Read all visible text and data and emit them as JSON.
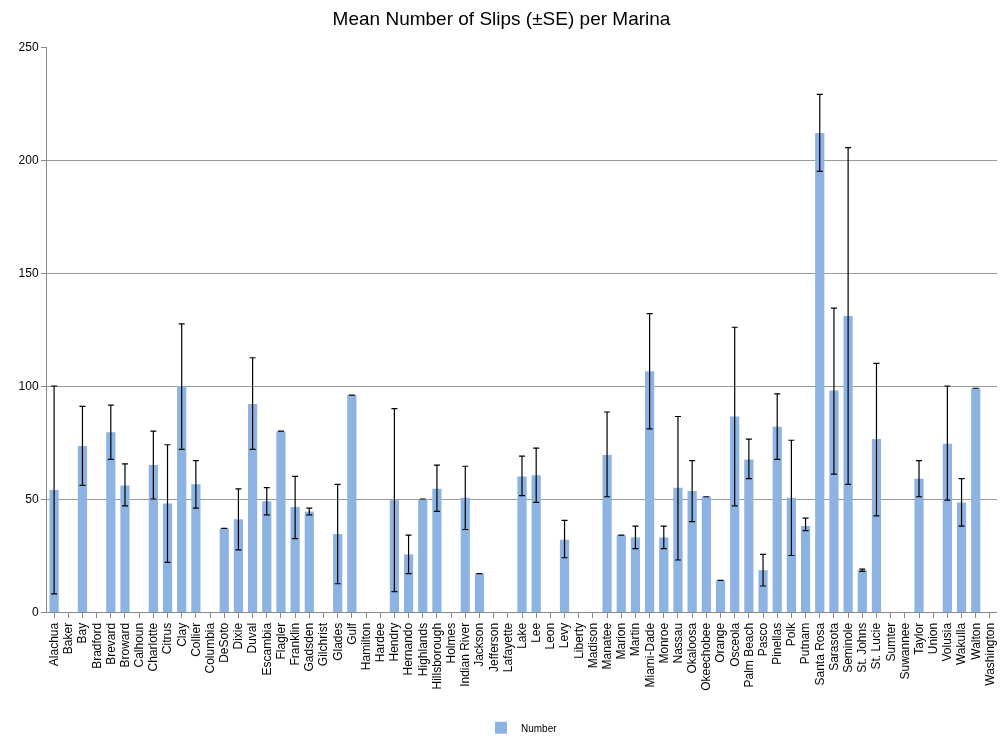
{
  "chart_data": {
    "type": "bar",
    "title": "Mean Number of Slips (±SE) per Marina",
    "categories": [
      "Alachua",
      "Baker",
      "Bay",
      "Bradford",
      "Brevard",
      "Broward",
      "Calhoun",
      "Charlotte",
      "Citrus",
      "Clay",
      "Collier",
      "Columbia",
      "DeSoto",
      "Dixie",
      "Duval",
      "Escambia",
      "Flagler",
      "Franklin",
      "Gadsden",
      "Gilchrist",
      "Glades",
      "Gulf",
      "Hamilton",
      "Hardee",
      "Hendry",
      "Hernando",
      "Highlands",
      "Hillsborough",
      "Holmes",
      "Indian River",
      "Jackson",
      "Jefferson",
      "Lafayette",
      "Lake",
      "Lee",
      "Leon",
      "Levy",
      "Liberty",
      "Madison",
      "Manatee",
      "Marion",
      "Martin",
      "Miami-Dade",
      "Monroe",
      "Nassau",
      "Okaloosa",
      "Okeechobee",
      "Orange",
      "Osceola",
      "Palm Beach",
      "Pasco",
      "Pinellas",
      "Polk",
      "Putnam",
      "Santa Rosa",
      "Sarasota",
      "Seminole",
      "St. Johns",
      "St. Lucie",
      "Sumter",
      "Suwannee",
      "Taylor",
      "Union",
      "Volusia",
      "Wakulla",
      "Walton",
      "Washington"
    ],
    "series": [
      {
        "name": "Number",
        "color": "#8db3e2",
        "values": [
          54,
          null,
          73.5,
          null,
          79.5,
          56,
          null,
          65,
          48,
          100,
          56.5,
          null,
          37,
          41,
          92,
          49,
          80,
          46.5,
          44.5,
          null,
          34.5,
          96,
          null,
          null,
          49.5,
          25.5,
          50,
          54.5,
          null,
          50.5,
          17,
          null,
          null,
          60,
          60.5,
          null,
          32,
          null,
          null,
          69.5,
          34,
          33,
          106.5,
          33,
          55,
          53.5,
          51,
          14,
          86.5,
          67.5,
          18.5,
          82,
          50.5,
          38,
          212,
          98,
          131,
          18.5,
          76.5,
          null,
          null,
          59,
          null,
          74.5,
          48.5,
          99,
          null
        ],
        "errors": [
          [
            8,
            100
          ],
          null,
          [
            56,
            91
          ],
          null,
          [
            67.5,
            91.5
          ],
          [
            47,
            65.5
          ],
          null,
          [
            50,
            80
          ],
          [
            22,
            74
          ],
          [
            72,
            127.5
          ],
          [
            46,
            67
          ],
          null,
          null,
          [
            27.5,
            54.5
          ],
          [
            72,
            112.5
          ],
          [
            43,
            55
          ],
          null,
          [
            32.5,
            60
          ],
          [
            43,
            46
          ],
          null,
          [
            12.5,
            56.5
          ],
          null,
          null,
          null,
          [
            9,
            90
          ],
          [
            17,
            34
          ],
          null,
          [
            44.5,
            65
          ],
          null,
          [
            36.5,
            64.5
          ],
          null,
          null,
          null,
          [
            51.5,
            69
          ],
          [
            48.5,
            72.5
          ],
          null,
          [
            24,
            40.5
          ],
          null,
          null,
          [
            51,
            88.5
          ],
          null,
          [
            28,
            38
          ],
          [
            81,
            132
          ],
          [
            28,
            38
          ],
          [
            23,
            86.5
          ],
          [
            40,
            67
          ],
          null,
          null,
          [
            47,
            126
          ],
          [
            59,
            76.5
          ],
          [
            11.5,
            25.5
          ],
          [
            67.5,
            96.5
          ],
          [
            25,
            76
          ],
          [
            36,
            41.5
          ],
          [
            195,
            229
          ],
          [
            61,
            134.5
          ],
          [
            56.5,
            205.5
          ],
          [
            18,
            19
          ],
          [
            42.5,
            110
          ],
          null,
          null,
          [
            51,
            67
          ],
          null,
          [
            49.5,
            100
          ],
          [
            38,
            59
          ],
          null,
          null
        ]
      }
    ],
    "ylim": [
      0,
      250
    ],
    "yticks": [
      0,
      50,
      100,
      150,
      200,
      250
    ],
    "grid": "y",
    "legend": "bottom"
  }
}
